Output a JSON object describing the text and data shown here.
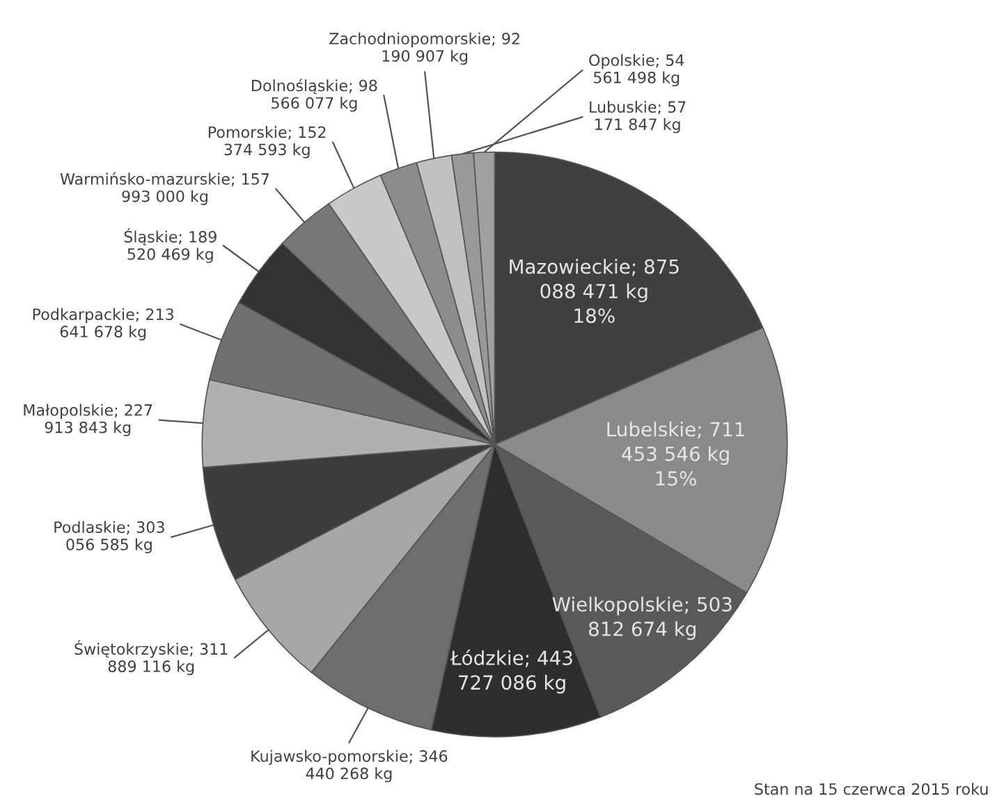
{
  "chart_data": {
    "type": "pie",
    "categories": [
      "Mazowieckie",
      "Lubelskie",
      "Wielkopolskie",
      "Łódzkie",
      "Kujawsko-pomorskie",
      "Świętokrzyskie",
      "Podlaskie",
      "Małopolskie",
      "Podkarpackie",
      "Śląskie",
      "Warmińsko-mazurskie",
      "Pomorskie",
      "Dolnośląskie",
      "Zachodniopomorskie",
      "Lubuskie",
      "Opolskie"
    ],
    "values": [
      875088471,
      711453546,
      503812674,
      443727086,
      346440268,
      311889116,
      303056585,
      227913843,
      213641678,
      189520469,
      157993000,
      152374593,
      98566077,
      92190907,
      57171847,
      54561498
    ],
    "colors": [
      "#404040",
      "#8a8a8a",
      "#5a5a5a",
      "#2e2e2e",
      "#6e6e6e",
      "#a6a6a6",
      "#3c3c3c",
      "#b0b0b0",
      "#707070",
      "#333333",
      "#777777",
      "#c8c8c8",
      "#8c8c8c",
      "#c0c0c0",
      "#999999",
      "#a0a0a0"
    ],
    "value_labels": [
      "875 088 471 kg\n18%",
      "711 453 546 kg\n15%",
      "503 812 674 kg",
      "443 727 086 kg",
      "346 440 268 kg",
      "311 889 116 kg",
      "303 056 585 kg",
      "227 913 843 kg",
      "213 641 678 kg",
      "189 520 469 kg",
      "157 993 000 kg",
      "152 374 593 kg",
      "98 566 077 kg",
      "92 190 907 kg",
      "57 171 847 kg",
      "54 561 498 kg"
    ],
    "annotations": [
      "Stan na 15 czerwca 2015 roku"
    ]
  }
}
